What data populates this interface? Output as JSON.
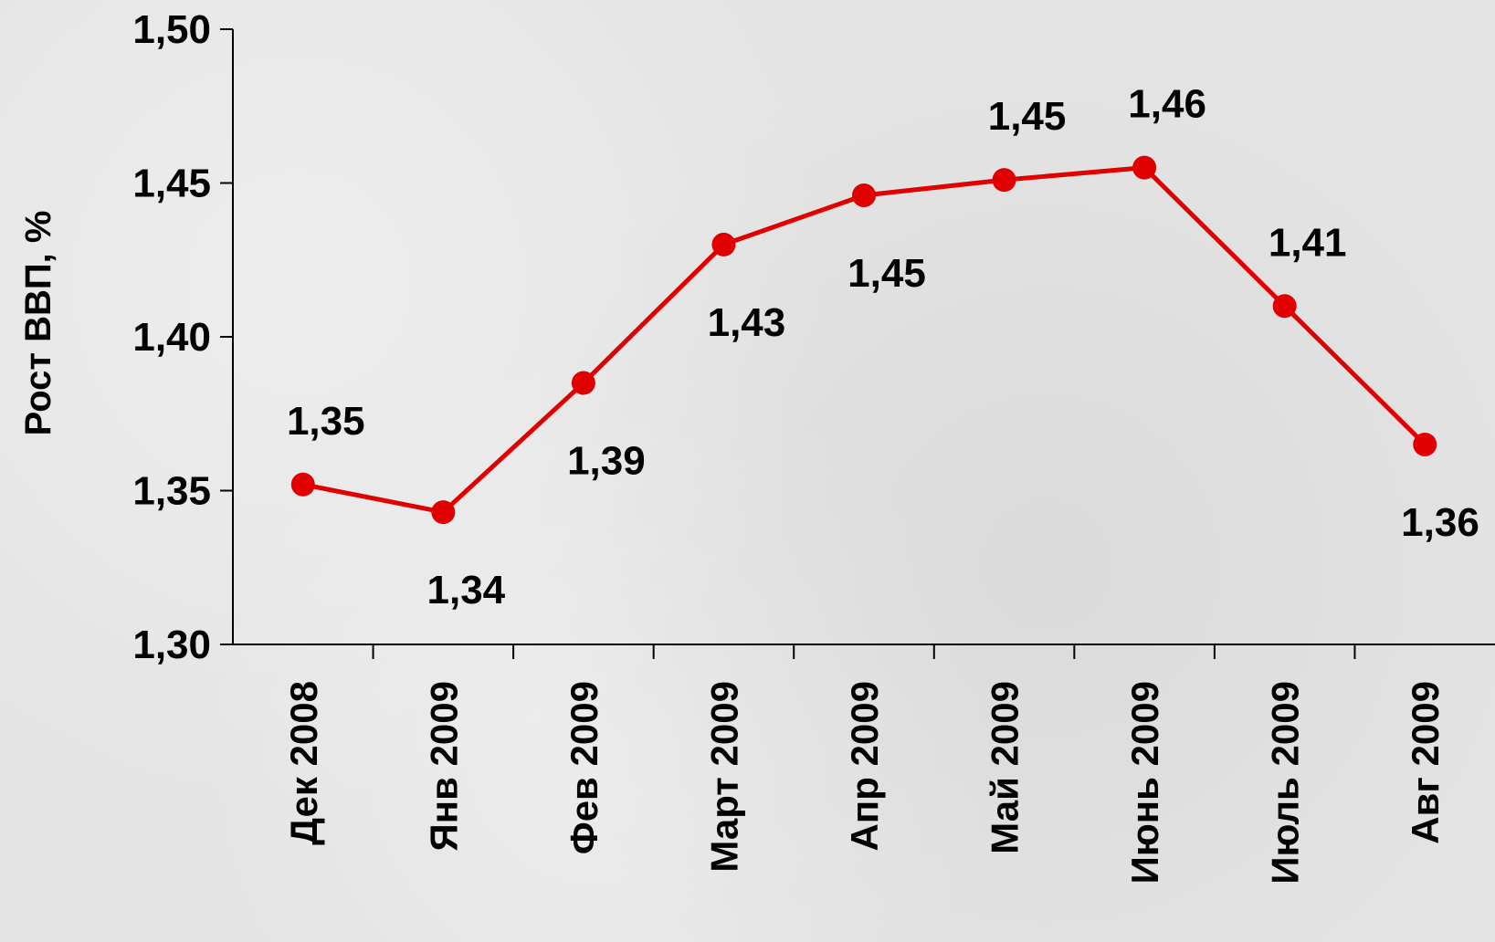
{
  "chart_data": {
    "type": "line",
    "ylabel": "Рост ВВП, %",
    "xlabel": "",
    "categories": [
      "Дек 2008",
      "Янв 2009",
      "Фев 2009",
      "Март 2009",
      "Апр 2009",
      "Май 2009",
      "Июнь 2009",
      "Июль 2009",
      "Авг 2009"
    ],
    "series": [
      {
        "values": [
          1.352,
          1.343,
          1.385,
          1.43,
          1.446,
          1.451,
          1.455,
          1.41,
          1.365
        ],
        "labels": [
          "1,35",
          "1,34",
          "1,39",
          "1,43",
          "1,45",
          "1,45",
          "1,46",
          "1,41",
          "1,36"
        ],
        "color": "#e00000"
      }
    ],
    "ylim": [
      1.3,
      1.5
    ],
    "yticks": [
      1.3,
      1.35,
      1.4,
      1.45,
      1.5
    ],
    "ytick_labels": [
      "1,30",
      "1,35",
      "1,40",
      "1,45",
      "1,50"
    ],
    "grid": false,
    "label_positions": [
      "above",
      "below",
      "below",
      "below",
      "below",
      "above",
      "above",
      "above",
      "below"
    ]
  }
}
